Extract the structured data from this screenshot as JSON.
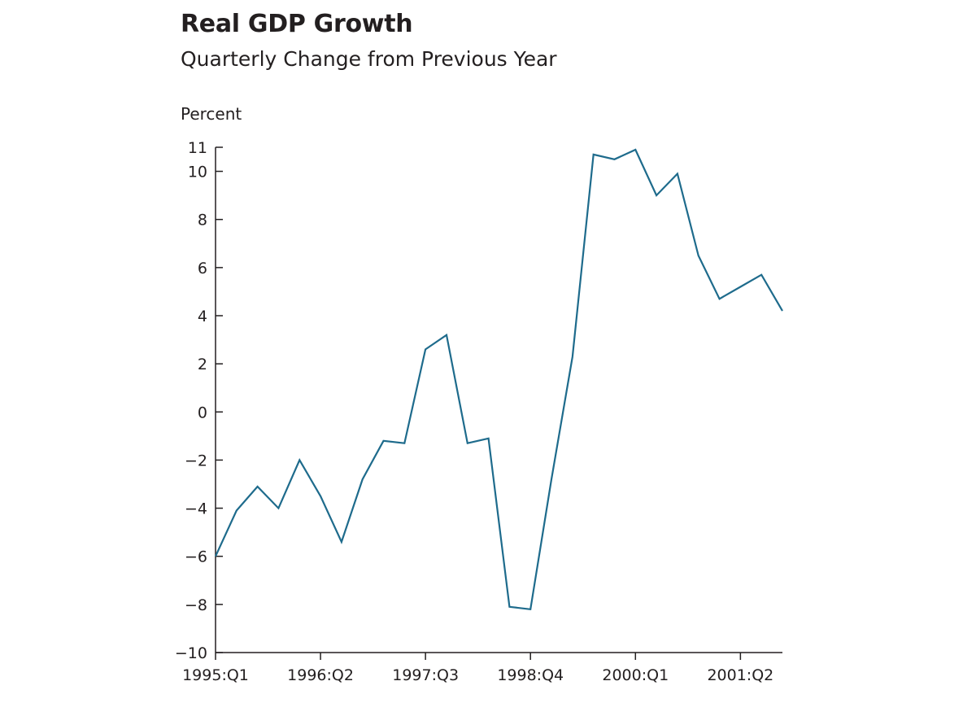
{
  "chart_data": {
    "type": "line",
    "title": "Real GDP Growth",
    "subtitle": "Quarterly Change from Previous Year",
    "ylabel": "Percent",
    "xlabel": "",
    "ylim": [
      -10,
      11
    ],
    "yticks": [
      11,
      10,
      8,
      6,
      4,
      2,
      0,
      -2,
      -4,
      -6,
      -8,
      -10
    ],
    "ytick_labels": [
      "11",
      "10",
      "8",
      "6",
      "4",
      "2",
      "0",
      "−2",
      "−4",
      "−6",
      "−8",
      "−10"
    ],
    "xtick_labels": [
      "1995:Q1",
      "1996:Q2",
      "1997:Q3",
      "1998:Q4",
      "2000:Q1",
      "2001:Q2"
    ],
    "xtick_index": [
      0,
      5,
      10,
      15,
      20,
      25
    ],
    "grid": false,
    "legend": "none",
    "line_color": "#1e6b8c",
    "x": [
      "1995:Q1",
      "1995:Q2",
      "1995:Q3",
      "1995:Q4",
      "1996:Q1",
      "1996:Q2",
      "1996:Q3",
      "1996:Q4",
      "1997:Q1",
      "1997:Q2",
      "1997:Q3",
      "1997:Q4",
      "1998:Q1",
      "1998:Q2",
      "1998:Q3",
      "1998:Q4",
      "1999:Q1",
      "1999:Q2",
      "1999:Q3",
      "1999:Q4",
      "2000:Q1",
      "2000:Q2",
      "2000:Q3",
      "2000:Q4",
      "2001:Q1",
      "2001:Q2",
      "2001:Q3",
      "2001:Q4"
    ],
    "values": [
      -6.0,
      -4.1,
      -3.1,
      -4.0,
      -2.0,
      -3.5,
      -5.4,
      -2.8,
      -1.2,
      -1.3,
      2.6,
      3.2,
      -1.3,
      -1.1,
      -8.1,
      -8.2,
      -2.8,
      2.3,
      10.7,
      10.5,
      10.9,
      9.0,
      9.9,
      6.5,
      4.7,
      5.2,
      5.7,
      4.2
    ]
  }
}
